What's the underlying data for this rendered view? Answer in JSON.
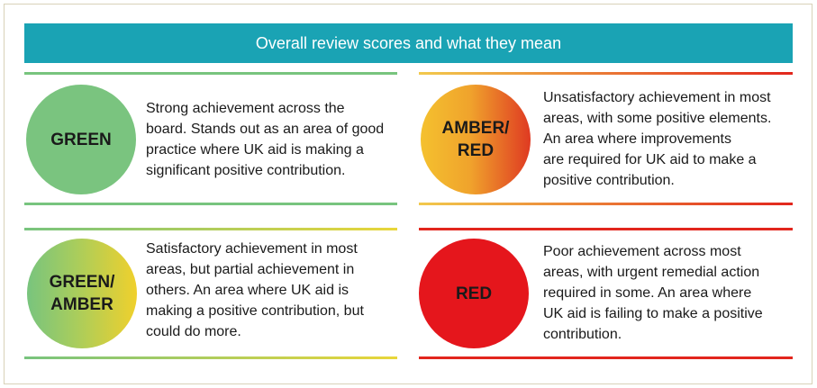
{
  "header": {
    "title": "Overall review scores and what they mean"
  },
  "scores": {
    "green": {
      "label": "GREEN",
      "description": "Strong achievement across the\nboard. Stands out as an area of good\npractice where UK aid is making a\nsignificant positive contribution.",
      "color": "#7ac47f"
    },
    "amber_red": {
      "label": "AMBER/\nRED",
      "description": "Unsatisfactory achievement in most\nareas, with some positive elements.\nAn area where improvements\nare required for UK aid to make a\npositive contribution.",
      "color": "#f0a32c"
    },
    "green_amber": {
      "label": "GREEN/\nAMBER",
      "description": "Satisfactory achievement in most\nareas, but partial achievement in\nothers. An area where UK aid is\nmaking a positive contribution, but\ncould do more.",
      "color": "#a9cd5c"
    },
    "red": {
      "label": "RED",
      "description": "Poor achievement across most\nareas, with urgent remedial action\nrequired in some. An area where\nUK aid is failing to make a positive\ncontribution.",
      "color": "#e5161c"
    }
  },
  "colors": {
    "header_bg": "#1aa3b4",
    "border": "#d8d2b8"
  }
}
